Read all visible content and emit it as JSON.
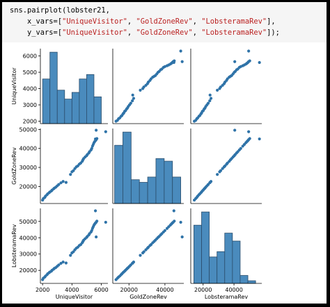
{
  "code": {
    "line1_prefix": "sns.pairplot(lobster21,",
    "line2_prefix": "    x_vars=[",
    "line3_prefix": "    y_vars=[",
    "x_vars": [
      "\"UniqueVisitor\"",
      "\"GoldZoneRev\"",
      "\"LobsteramaRev\""
    ],
    "y_vars": [
      "\"UniqueVisitor\"",
      "\"GoldZoneRev\"",
      "\"LobsteramaRev\""
    ],
    "sep": ", ",
    "line2_suffix": "],",
    "line3_suffix": "]);"
  },
  "colors": {
    "bar_fill": "#4a8bbd",
    "bar_edge": "#2b4d6b",
    "point": "#2f73a8",
    "axis": "#000000",
    "background": "#ffffff",
    "code_background": "#f5f5f5",
    "string": "#ba2121"
  },
  "chart_data": {
    "type": "scatter",
    "title": "",
    "layout": "pairplot 3x3",
    "variables": [
      "UniqueVisitor",
      "GoldZoneRev",
      "LobsteramaRev"
    ],
    "axes": {
      "UniqueVisitor": {
        "range": [
          1850,
          6450
        ],
        "ticks": [
          2000,
          4000,
          6000
        ],
        "ytick_labels": [
          "2000",
          "3000",
          "4000",
          "5000",
          "6000"
        ],
        "yticks": [
          2000,
          3000,
          4000,
          5000,
          6000
        ]
      },
      "GoldZoneRev": {
        "range": [
          11000,
          50500
        ],
        "ticks": [
          20000,
          40000
        ],
        "yticks": [
          20000,
          30000,
          40000,
          50000
        ]
      },
      "LobsteramaRev": {
        "range": [
          12000,
          58000
        ],
        "ticks": [
          20000,
          40000
        ],
        "yticks": [
          20000,
          30000,
          40000,
          50000
        ]
      }
    },
    "histograms": {
      "UniqueVisitor": {
        "edges": [
          2000,
          2500,
          3000,
          3500,
          4000,
          4500,
          5000,
          5500,
          6000
        ],
        "counts": [
          20,
          32,
          15,
          11,
          14,
          20,
          22,
          12
        ]
      },
      "GoldZoneRev": {
        "edges": [
          12000,
          16600,
          21200,
          25800,
          30400,
          35000,
          39600,
          44200,
          48800
        ],
        "counts": [
          22,
          27,
          9,
          8,
          10,
          17,
          16,
          10
        ]
      },
      "LobsteramaRev": {
        "edges": [
          14000,
          19000,
          24000,
          29000,
          34000,
          39000,
          44000,
          49000,
          54000
        ],
        "counts": [
          22,
          27,
          10,
          12,
          19,
          16,
          3,
          1
        ]
      }
    },
    "points": [
      {
        "UniqueVisitor": 2000,
        "GoldZoneRev": 12800,
        "LobsteramaRev": 14300
      },
      {
        "UniqueVisitor": 2050,
        "GoldZoneRev": 13600,
        "LobsteramaRev": 15200
      },
      {
        "UniqueVisitor": 2150,
        "GoldZoneRev": 14200,
        "LobsteramaRev": 15900
      },
      {
        "UniqueVisitor": 2200,
        "GoldZoneRev": 14900,
        "LobsteramaRev": 16500
      },
      {
        "UniqueVisitor": 2300,
        "GoldZoneRev": 15600,
        "LobsteramaRev": 17300
      },
      {
        "UniqueVisitor": 2350,
        "GoldZoneRev": 16100,
        "LobsteramaRev": 17900
      },
      {
        "UniqueVisitor": 2450,
        "GoldZoneRev": 16700,
        "LobsteramaRev": 18600
      },
      {
        "UniqueVisitor": 2500,
        "GoldZoneRev": 17100,
        "LobsteramaRev": 19000
      },
      {
        "UniqueVisitor": 2600,
        "GoldZoneRev": 17600,
        "LobsteramaRev": 19500
      },
      {
        "UniqueVisitor": 2650,
        "GoldZoneRev": 18100,
        "LobsteramaRev": 20100
      },
      {
        "UniqueVisitor": 2750,
        "GoldZoneRev": 18700,
        "LobsteramaRev": 20700
      },
      {
        "UniqueVisitor": 2800,
        "GoldZoneRev": 19100,
        "LobsteramaRev": 21200
      },
      {
        "UniqueVisitor": 2900,
        "GoldZoneRev": 19600,
        "LobsteramaRev": 21700
      },
      {
        "UniqueVisitor": 3000,
        "GoldZoneRev": 20300,
        "LobsteramaRev": 22500
      },
      {
        "UniqueVisitor": 3100,
        "GoldZoneRev": 21000,
        "LobsteramaRev": 23300
      },
      {
        "UniqueVisitor": 3250,
        "GoldZoneRev": 21900,
        "LobsteramaRev": 24300
      },
      {
        "UniqueVisitor": 3400,
        "GoldZoneRev": 22600,
        "LobsteramaRev": 25100
      },
      {
        "UniqueVisitor": 3600,
        "GoldZoneRev": 22100,
        "LobsteramaRev": 24500
      },
      {
        "UniqueVisitor": 3900,
        "GoldZoneRev": 26300,
        "LobsteramaRev": 29200
      },
      {
        "UniqueVisitor": 4000,
        "GoldZoneRev": 27700,
        "LobsteramaRev": 30700
      },
      {
        "UniqueVisitor": 4100,
        "GoldZoneRev": 28300,
        "LobsteramaRev": 31400
      },
      {
        "UniqueVisitor": 4200,
        "GoldZoneRev": 29400,
        "LobsteramaRev": 32600
      },
      {
        "UniqueVisitor": 4300,
        "GoldZoneRev": 30300,
        "LobsteramaRev": 33600
      },
      {
        "UniqueVisitor": 4400,
        "GoldZoneRev": 30800,
        "LobsteramaRev": 34200
      },
      {
        "UniqueVisitor": 4500,
        "GoldZoneRev": 31700,
        "LobsteramaRev": 35200
      },
      {
        "UniqueVisitor": 4600,
        "GoldZoneRev": 32300,
        "LobsteramaRev": 35800
      },
      {
        "UniqueVisitor": 4700,
        "GoldZoneRev": 33200,
        "LobsteramaRev": 36900
      },
      {
        "UniqueVisitor": 4750,
        "GoldZoneRev": 34000,
        "LobsteramaRev": 37700
      },
      {
        "UniqueVisitor": 4800,
        "GoldZoneRev": 34700,
        "LobsteramaRev": 38500
      },
      {
        "UniqueVisitor": 4900,
        "GoldZoneRev": 35500,
        "LobsteramaRev": 39400
      },
      {
        "UniqueVisitor": 5000,
        "GoldZoneRev": 36200,
        "LobsteramaRev": 40200
      },
      {
        "UniqueVisitor": 5050,
        "GoldZoneRev": 36800,
        "LobsteramaRev": 40800
      },
      {
        "UniqueVisitor": 5150,
        "GoldZoneRev": 37600,
        "LobsteramaRev": 41700
      },
      {
        "UniqueVisitor": 5200,
        "GoldZoneRev": 38300,
        "LobsteramaRev": 42500
      },
      {
        "UniqueVisitor": 5300,
        "GoldZoneRev": 39200,
        "LobsteramaRev": 43500
      },
      {
        "UniqueVisitor": 5350,
        "GoldZoneRev": 40000,
        "LobsteramaRev": 44400
      },
      {
        "UniqueVisitor": 5400,
        "GoldZoneRev": 41200,
        "LobsteramaRev": 45700
      },
      {
        "UniqueVisitor": 5450,
        "GoldZoneRev": 42100,
        "LobsteramaRev": 46700
      },
      {
        "UniqueVisitor": 5500,
        "GoldZoneRev": 43000,
        "LobsteramaRev": 47700
      },
      {
        "UniqueVisitor": 5550,
        "GoldZoneRev": 43600,
        "LobsteramaRev": 48400
      },
      {
        "UniqueVisitor": 5600,
        "GoldZoneRev": 44100,
        "LobsteramaRev": 49000
      },
      {
        "UniqueVisitor": 5650,
        "GoldZoneRev": 44600,
        "LobsteramaRev": 49500
      },
      {
        "UniqueVisitor": 5700,
        "GoldZoneRev": 45200,
        "LobsteramaRev": 50200
      },
      {
        "UniqueVisitor": 5600,
        "GoldZoneRev": 45000,
        "LobsteramaRev": 56500
      },
      {
        "UniqueVisitor": 6300,
        "GoldZoneRev": 48800,
        "LobsteramaRev": 49500
      },
      {
        "UniqueVisitor": 5650,
        "GoldZoneRev": 49600,
        "LobsteramaRev": 40500
      }
    ]
  }
}
